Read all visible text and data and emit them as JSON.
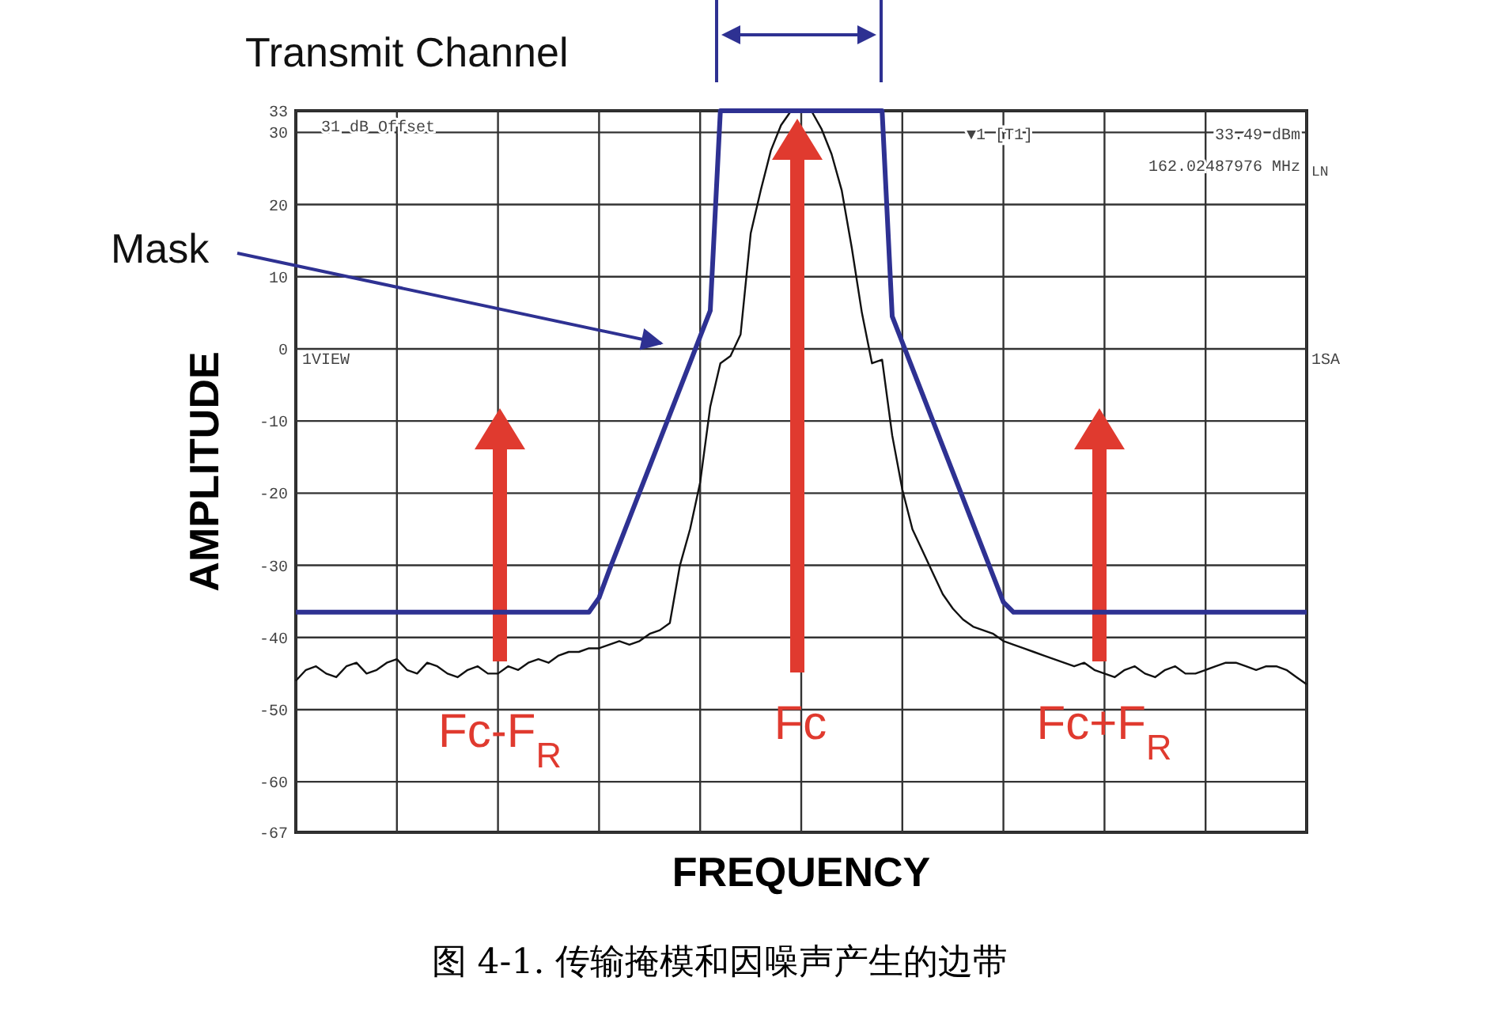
{
  "chart_data": {
    "type": "line",
    "title": "图 4-1. 传输掩模和因噪声产生的边带",
    "xlabel": "FREQUENCY",
    "ylabel": "AMPLITUDE",
    "categories": [
      null,
      null,
      null,
      null,
      null,
      null,
      null,
      null,
      null,
      null,
      null,
      null,
      null,
      null,
      null,
      null,
      null,
      null,
      null,
      null,
      null,
      null,
      null,
      null,
      null,
      null,
      null,
      null,
      null,
      null,
      null,
      null,
      null,
      null,
      null,
      null,
      null,
      null,
      null,
      null,
      null,
      null,
      null,
      null,
      null,
      null,
      null,
      null,
      null,
      null,
      null,
      null,
      null,
      null,
      null,
      null,
      null,
      null,
      null,
      null,
      null,
      null,
      null,
      null,
      null,
      null,
      null,
      null,
      null,
      null,
      null,
      null,
      null,
      null,
      null,
      null,
      null,
      null,
      null,
      null,
      null,
      null,
      null,
      null,
      null,
      null,
      null,
      null,
      null,
      null,
      null,
      null,
      null,
      null,
      null,
      null,
      null,
      null,
      null,
      null,
      null
    ],
    "ylim": [
      -67,
      33
    ],
    "yticks": [
      -67,
      -60,
      -50,
      -40,
      -30,
      -20,
      -10,
      0,
      10,
      20,
      30,
      33
    ],
    "grid": true,
    "marker": "none",
    "line_style": "solid",
    "series": [
      {
        "color": "#111111",
        "values": [
          -46,
          -44.5,
          -44,
          -45,
          -45.5,
          -44,
          -43.5,
          -45,
          -44.5,
          -43.5,
          -43,
          -44.5,
          -45,
          -43.5,
          -44,
          -45,
          -45.5,
          -44.5,
          -44,
          -45,
          -45,
          -44,
          -44.5,
          -43.5,
          -43,
          -43.5,
          -42.5,
          -42,
          -42,
          -41.5,
          -41.5,
          -41,
          -40.5,
          -41,
          -40.5,
          -39.5,
          -39,
          -38,
          -30,
          -25,
          -18.5,
          -8,
          -2,
          -1,
          2,
          16,
          22,
          27.5,
          31,
          33,
          33,
          33,
          30.5,
          27,
          22,
          14,
          5,
          -2,
          -1.5,
          -12,
          -19.5,
          -25,
          -28,
          -31,
          -34,
          -36,
          -37.5,
          -38.5,
          -39,
          -39.5,
          -40.5,
          -41,
          -41.5,
          -42,
          -42.5,
          -43,
          -43.5,
          -44,
          -43.5,
          -44.5,
          -45,
          -45.5,
          -44.5,
          -44,
          -45,
          -45.5,
          -44.5,
          -44,
          -45,
          -45,
          -44.5,
          -44,
          -43.5,
          -43.5,
          -44,
          -44.5,
          -44,
          -44,
          -44.5,
          -45.5,
          -46.5
        ]
      },
      {
        "color": "#2e3192",
        "values": [
          -36.5,
          -36.5,
          -36.5,
          -36.5,
          -36.5,
          -36.5,
          -36.5,
          -36.5,
          -36.5,
          -36.5,
          -36.5,
          -36.5,
          -36.5,
          -36.5,
          -36.5,
          -36.5,
          -36.5,
          -36.5,
          -36.5,
          -36.5,
          -36.5,
          -36.5,
          -36.5,
          -36.5,
          -36.5,
          -36.5,
          -36.5,
          -36.5,
          -36.5,
          -36.5,
          -34.5,
          -30.7,
          -27.1,
          -23.5,
          -19.9,
          -16.3,
          -12.7,
          -9.1,
          -5.5,
          -1.9,
          1.7,
          5.3,
          33,
          33,
          33,
          33,
          33,
          33,
          33,
          33,
          33,
          33,
          33,
          33,
          33,
          33,
          33,
          33,
          33,
          4.5,
          0.9,
          -2.7,
          -6.3,
          -9.9,
          -13.5,
          -17.1,
          -20.7,
          -24.3,
          -27.9,
          -31.5,
          -35.1,
          -36.5,
          -36.5,
          -36.5,
          -36.5,
          -36.5,
          -36.5,
          -36.5,
          -36.5,
          -36.5,
          -36.5,
          -36.5,
          -36.5,
          -36.5,
          -36.5,
          -36.5,
          -36.5,
          -36.5,
          -36.5,
          -36.5,
          -36.5,
          -36.5,
          -36.5,
          -36.5,
          -36.5,
          -36.5,
          -36.5,
          -36.5,
          -36.5,
          -36.5,
          -36.5
        ]
      }
    ],
    "annotations": [
      "Fc-F$_{R}$",
      "Fc",
      "Fc+F$_{R}$",
      "Mask",
      "Transmit Channel",
      "31 dB Offset",
      "▼1 [T1]",
      "33.49 dBm",
      "162.02487976 MHz",
      "LN",
      "1VIEW",
      "1SA"
    ]
  }
}
